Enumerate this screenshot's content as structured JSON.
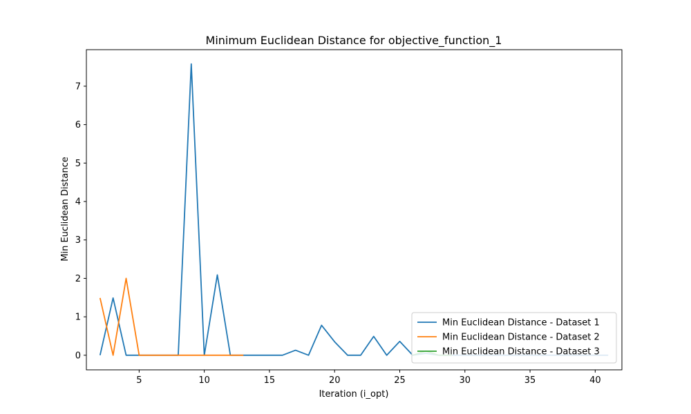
{
  "chart_data": {
    "type": "line",
    "title": "Minimum Euclidean Distance for objective_function_1",
    "xlabel": "Iteration (i_opt)",
    "ylabel": "Min Euclidean Distance",
    "xlim": [
      0.95,
      42.05
    ],
    "ylim": [
      -0.38,
      7.95
    ],
    "xticks": [
      5,
      10,
      15,
      20,
      25,
      30,
      35,
      40
    ],
    "yticks": [
      0,
      1,
      2,
      3,
      4,
      5,
      6,
      7
    ],
    "grid": false,
    "legend_position": "lower right",
    "series": [
      {
        "name": "Min Euclidean Distance - Dataset 1",
        "color": "#1f77b4",
        "x": [
          2,
          3,
          4,
          5,
          6,
          7,
          8,
          9,
          10,
          11,
          12,
          13,
          14,
          15,
          16,
          17,
          18,
          19,
          20,
          21,
          22,
          23,
          24,
          25,
          26,
          27,
          28,
          29,
          30,
          31,
          32,
          33,
          34,
          35,
          36,
          37,
          38,
          39,
          40,
          41
        ],
        "y": [
          0,
          1.49,
          0,
          0,
          0,
          0,
          0,
          7.58,
          0,
          2.09,
          0,
          0,
          0,
          0,
          0,
          0.13,
          0,
          0.78,
          0.35,
          0,
          0,
          0.49,
          0,
          0.36,
          0,
          0.05,
          0,
          0,
          0,
          0,
          0,
          0,
          0,
          0,
          0,
          0,
          0,
          0,
          0,
          0
        ]
      },
      {
        "name": "Min Euclidean Distance - Dataset 2",
        "color": "#ff7f0e",
        "x": [
          2,
          3,
          4,
          5,
          6,
          7,
          8,
          9,
          10,
          11,
          12,
          13
        ],
        "y": [
          1.49,
          0,
          2.0,
          0,
          0,
          0,
          0,
          0,
          0,
          0,
          0,
          0
        ]
      },
      {
        "name": "Min Euclidean Distance - Dataset 3",
        "color": "#2ca02c",
        "x": [
          26,
          27,
          28,
          29
        ],
        "y": [
          0,
          0.11,
          0,
          0
        ]
      }
    ]
  }
}
